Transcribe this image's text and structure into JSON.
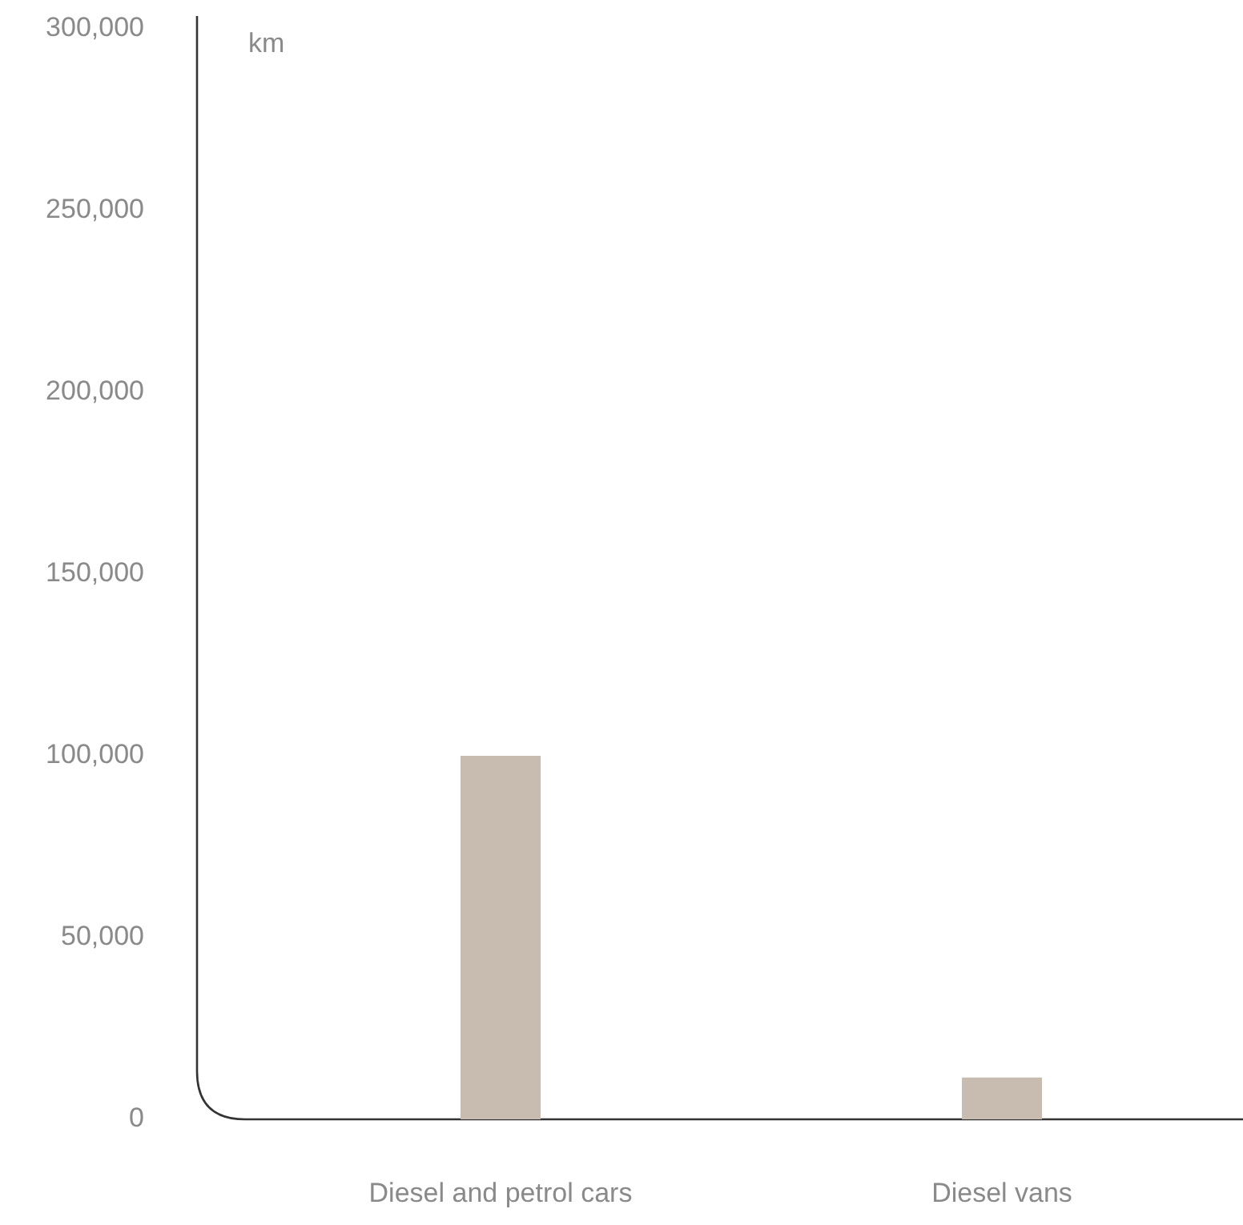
{
  "chart_data": {
    "type": "bar",
    "ylabel": "km",
    "categories": [
      "Diesel and petrol cars",
      "Diesel vans"
    ],
    "values": [
      100000,
      11500
    ],
    "color": "#c8bcb0",
    "ylim": [
      0,
      300000
    ],
    "yticks": [
      {
        "value": 0,
        "label": "0"
      },
      {
        "value": 50000,
        "label": "50,000"
      },
      {
        "value": 100000,
        "label": "100,000"
      },
      {
        "value": 150000,
        "label": "150,000"
      },
      {
        "value": 200000,
        "label": "200,000"
      },
      {
        "value": 250000,
        "label": "250,000"
      },
      {
        "value": 300000,
        "label": "300,000"
      }
    ],
    "grid": false
  }
}
